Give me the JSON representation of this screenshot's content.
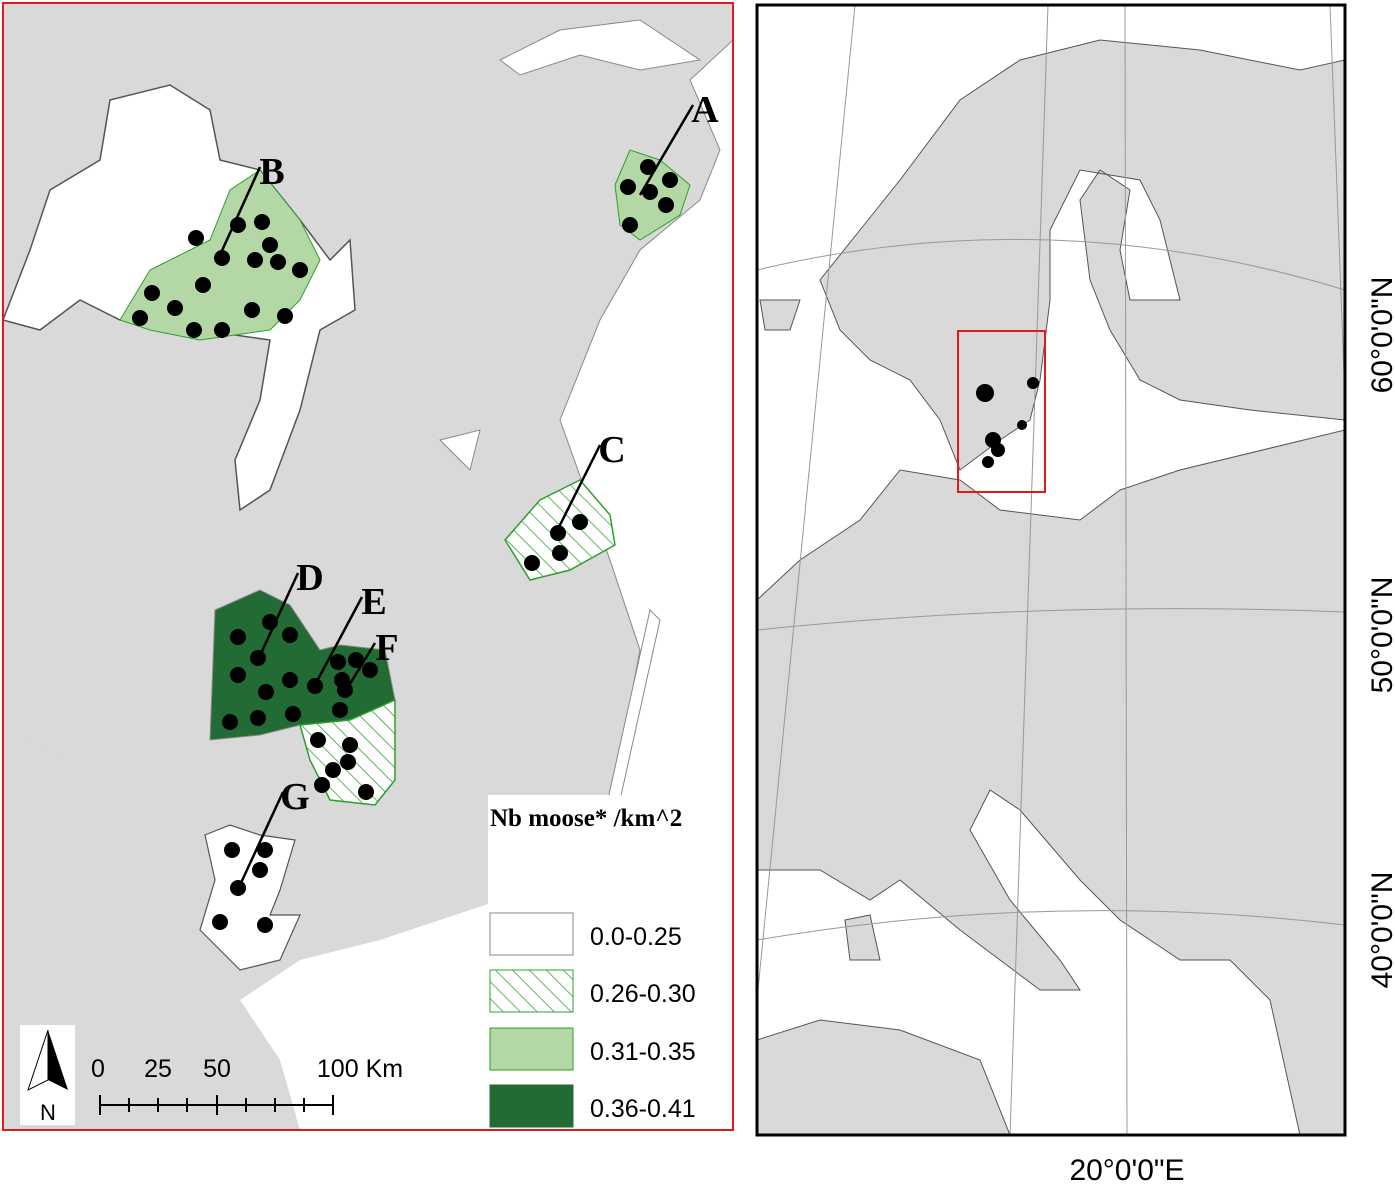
{
  "study_areas": [
    {
      "label": "A"
    },
    {
      "label": "B"
    },
    {
      "label": "C"
    },
    {
      "label": "D"
    },
    {
      "label": "E"
    },
    {
      "label": "F"
    },
    {
      "label": "G"
    }
  ],
  "legend": {
    "title": "Nb moose* /km^2",
    "items": [
      {
        "label": "0.0-0.25"
      },
      {
        "label": "0.26-0.30"
      },
      {
        "label": "0.31-0.35"
      },
      {
        "label": "0.36-0.41"
      }
    ]
  },
  "scale_bar": {
    "labels": [
      "0",
      "25",
      "50",
      "100 Km"
    ]
  },
  "north_arrow": "N",
  "graticule": {
    "latitudes": [
      "60°0'0\"N",
      "50°0'0\"N",
      "40°0'0\"N"
    ],
    "longitude": "20°0'0\"E"
  }
}
